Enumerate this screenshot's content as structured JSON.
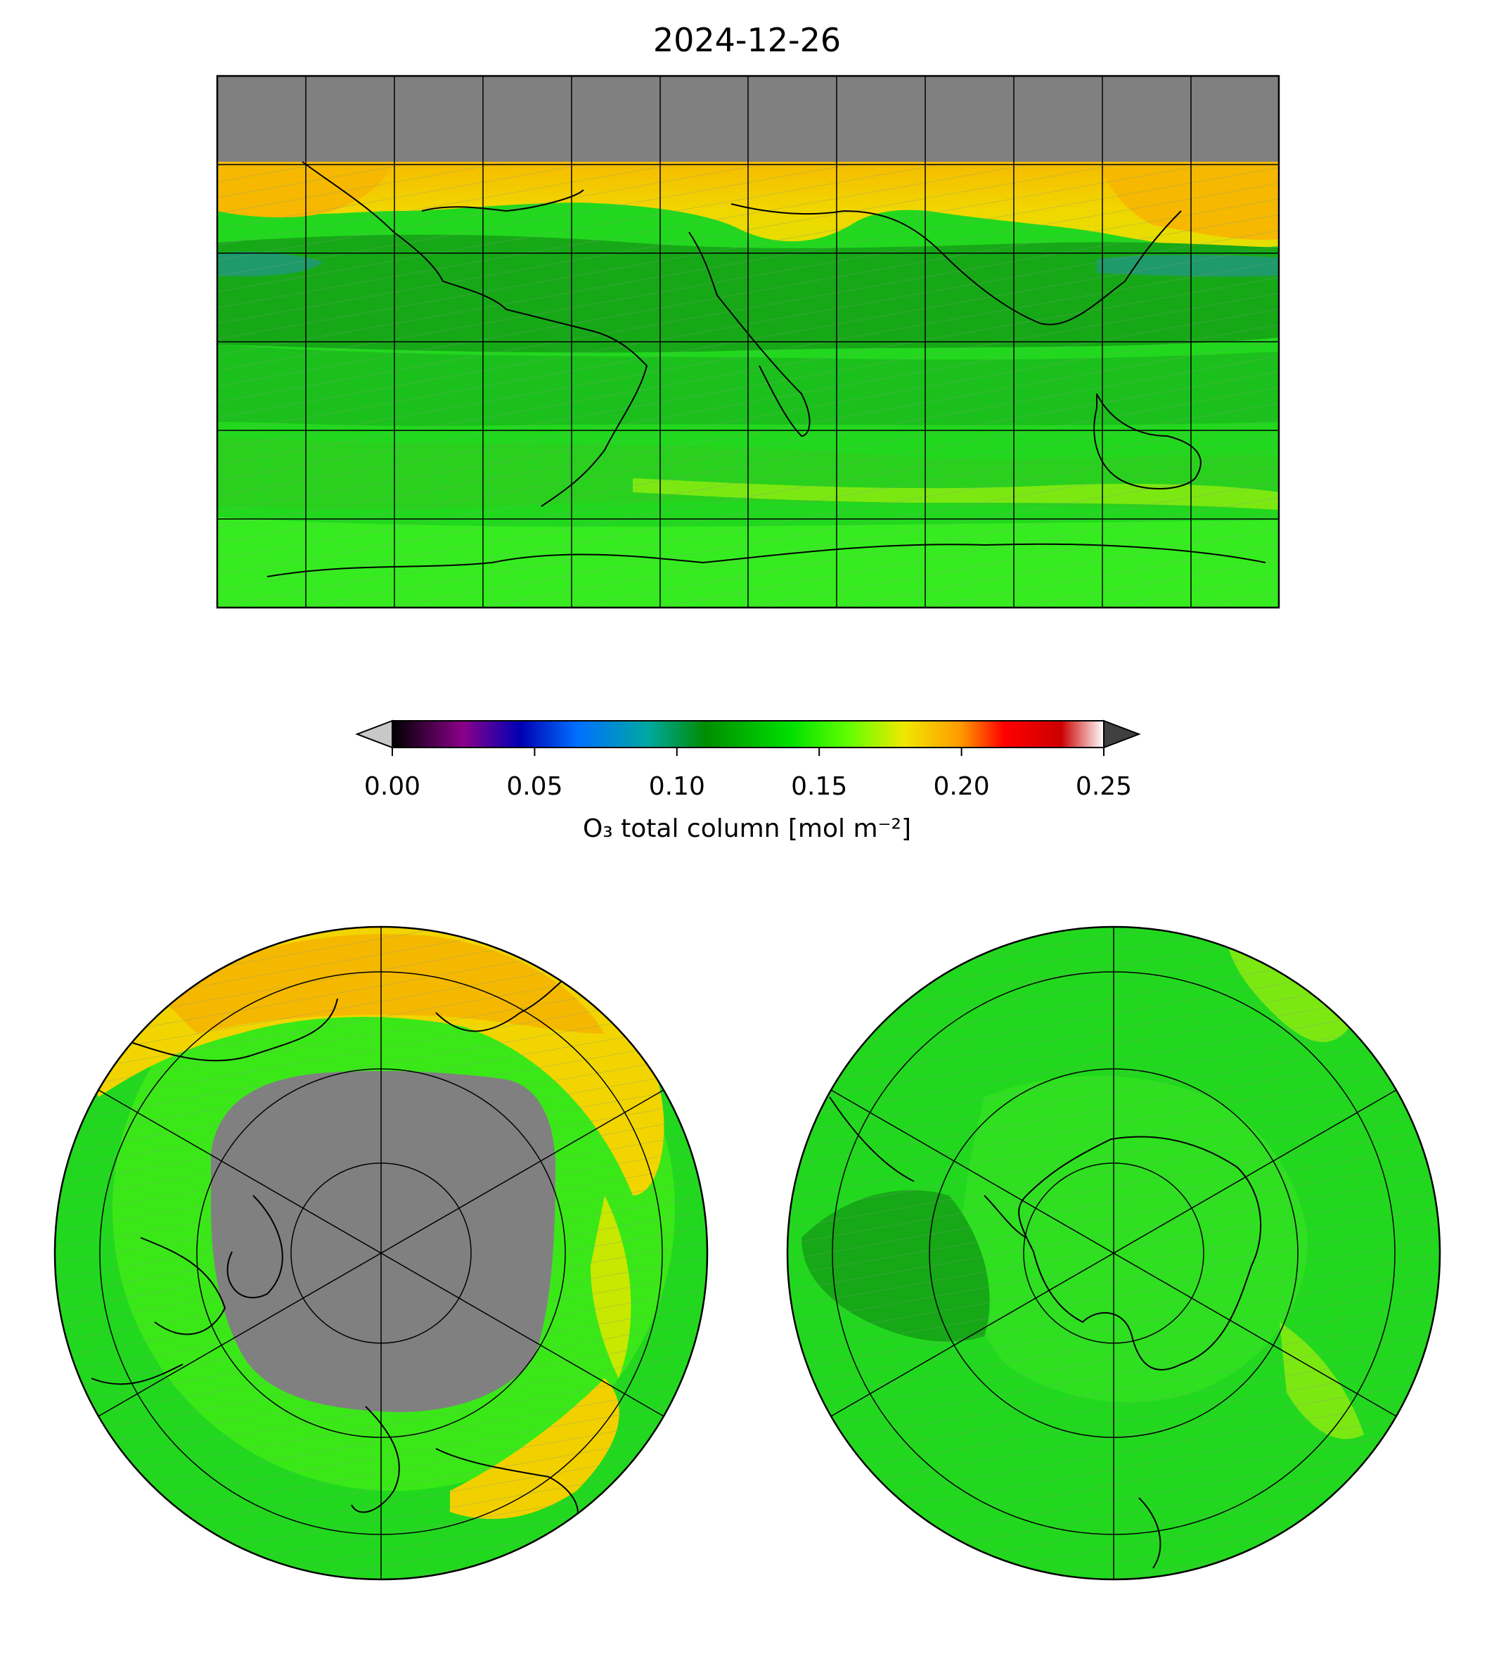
{
  "title": "2024-12-26",
  "colorbar": {
    "label": "O₃ total column [mol m⁻²]",
    "ticks": [
      "0.00",
      "0.05",
      "0.10",
      "0.15",
      "0.20",
      "0.25"
    ],
    "vmin": 0.0,
    "vmax": 0.25,
    "extend": "both",
    "stops": [
      {
        "v": 0.0,
        "color": "#000000"
      },
      {
        "v": 0.025,
        "color": "#8a008a"
      },
      {
        "v": 0.045,
        "color": "#0000b4"
      },
      {
        "v": 0.065,
        "color": "#0070ff"
      },
      {
        "v": 0.09,
        "color": "#00a8a0"
      },
      {
        "v": 0.11,
        "color": "#008c00"
      },
      {
        "v": 0.14,
        "color": "#00e000"
      },
      {
        "v": 0.16,
        "color": "#60ff00"
      },
      {
        "v": 0.18,
        "color": "#f0e800"
      },
      {
        "v": 0.2,
        "color": "#ff9800"
      },
      {
        "v": 0.215,
        "color": "#ff0000"
      },
      {
        "v": 0.235,
        "color": "#cc0000"
      },
      {
        "v": 0.25,
        "color": "#ffffff"
      }
    ],
    "under_color": "#c8c8c8",
    "over_color": "#404040"
  },
  "maps": [
    {
      "name": "global",
      "projection": "equirectangular"
    },
    {
      "name": "north-polar",
      "projection": "north-polar-stereographic"
    },
    {
      "name": "south-polar",
      "projection": "south-polar-stereographic"
    }
  ],
  "fill_colors": {
    "missing": "#808080",
    "green": "#22d81e",
    "dark_green": "#15a515",
    "bright_green": "#3af022",
    "yellow": "#f2d800",
    "orange": "#f5b800",
    "teal": "#1f9a6a"
  }
}
